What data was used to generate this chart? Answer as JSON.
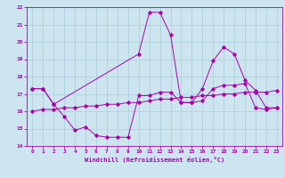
{
  "xlabel": "Windchill (Refroidissement éolien,°C)",
  "xlim": [
    -0.5,
    23.5
  ],
  "ylim": [
    14,
    22
  ],
  "yticks": [
    14,
    15,
    16,
    17,
    18,
    19,
    20,
    21,
    22
  ],
  "xticks": [
    0,
    1,
    2,
    3,
    4,
    5,
    6,
    7,
    8,
    9,
    10,
    11,
    12,
    13,
    14,
    15,
    16,
    17,
    18,
    19,
    20,
    21,
    22,
    23
  ],
  "bg_color": "#cce5ef",
  "line_color": "#aa00aa",
  "grid_color": "#aaccdd",
  "series": [
    {
      "x": [
        0,
        1,
        2,
        10,
        11,
        12,
        13,
        14,
        15,
        16,
        17,
        18,
        19,
        20,
        21,
        22,
        23
      ],
      "y": [
        17.3,
        17.3,
        16.4,
        19.3,
        21.7,
        21.7,
        20.4,
        16.5,
        16.5,
        17.3,
        18.9,
        19.7,
        19.3,
        17.8,
        17.2,
        16.2,
        16.2
      ]
    },
    {
      "x": [
        0,
        1,
        2,
        3,
        4,
        5,
        6,
        7,
        8,
        9,
        10,
        11,
        12,
        13,
        14,
        15,
        16,
        17,
        18,
        19,
        20,
        21,
        22,
        23
      ],
      "y": [
        17.3,
        17.3,
        16.4,
        15.7,
        14.9,
        15.1,
        14.6,
        14.5,
        14.5,
        14.5,
        16.9,
        16.9,
        17.1,
        17.1,
        16.5,
        16.5,
        16.6,
        17.3,
        17.5,
        17.5,
        17.6,
        16.2,
        16.1,
        16.2
      ]
    },
    {
      "x": [
        0,
        1,
        2,
        3,
        4,
        5,
        6,
        7,
        8,
        9,
        10,
        11,
        12,
        13,
        14,
        15,
        16,
        17,
        18,
        19,
        20,
        21,
        22,
        23
      ],
      "y": [
        16.0,
        16.1,
        16.1,
        16.2,
        16.2,
        16.3,
        16.3,
        16.4,
        16.4,
        16.5,
        16.5,
        16.6,
        16.7,
        16.7,
        16.8,
        16.8,
        16.9,
        16.9,
        17.0,
        17.0,
        17.1,
        17.1,
        17.1,
        17.2
      ]
    }
  ]
}
